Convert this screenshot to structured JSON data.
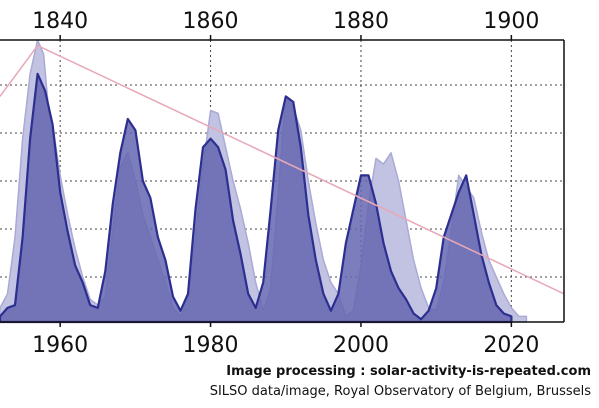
{
  "chart_data": {
    "type": "area",
    "title": "",
    "top_axis": {
      "ticks": [
        1840,
        1860,
        1880,
        1900
      ],
      "range": [
        1832,
        1907
      ]
    },
    "bottom_axis": {
      "ticks": [
        1960,
        1980,
        2000,
        2020
      ],
      "range": [
        1952,
        2027
      ]
    },
    "ylim": [
      0,
      1
    ],
    "grid": true,
    "series": [
      {
        "axis": "top",
        "color": "#c2c2e2",
        "points": [
          [
            1832,
            0.05
          ],
          [
            1833,
            0.1
          ],
          [
            1834,
            0.3
          ],
          [
            1835,
            0.65
          ],
          [
            1836,
            0.88
          ],
          [
            1837,
            1.0
          ],
          [
            1837.8,
            0.95
          ],
          [
            1838.5,
            0.74
          ],
          [
            1839,
            0.7
          ],
          [
            1840,
            0.52
          ],
          [
            1841,
            0.38
          ],
          [
            1842,
            0.26
          ],
          [
            1843,
            0.16
          ],
          [
            1844,
            0.08
          ],
          [
            1845,
            0.06
          ],
          [
            1846,
            0.09
          ],
          [
            1847,
            0.32
          ],
          [
            1848,
            0.55
          ],
          [
            1849,
            0.6
          ],
          [
            1850,
            0.5
          ],
          [
            1851,
            0.38
          ],
          [
            1852,
            0.3
          ],
          [
            1853,
            0.22
          ],
          [
            1854,
            0.14
          ],
          [
            1855,
            0.05
          ],
          [
            1856,
            0.02
          ],
          [
            1857,
            0.08
          ],
          [
            1858,
            0.3
          ],
          [
            1859,
            0.55
          ],
          [
            1860,
            0.75
          ],
          [
            1861,
            0.74
          ],
          [
            1862,
            0.62
          ],
          [
            1863,
            0.5
          ],
          [
            1864,
            0.4
          ],
          [
            1865,
            0.28
          ],
          [
            1866,
            0.14
          ],
          [
            1867,
            0.04
          ],
          [
            1868,
            0.12
          ],
          [
            1869,
            0.45
          ],
          [
            1870,
            0.8
          ],
          [
            1871,
            0.76
          ],
          [
            1872,
            0.68
          ],
          [
            1873,
            0.5
          ],
          [
            1874,
            0.35
          ],
          [
            1875,
            0.22
          ],
          [
            1876,
            0.14
          ],
          [
            1877,
            0.1
          ],
          [
            1878,
            0.02
          ],
          [
            1879,
            0.04
          ],
          [
            1880,
            0.2
          ],
          [
            1881,
            0.42
          ],
          [
            1882,
            0.58
          ],
          [
            1883,
            0.56
          ],
          [
            1884,
            0.6
          ],
          [
            1885,
            0.5
          ],
          [
            1886,
            0.36
          ],
          [
            1887,
            0.22
          ],
          [
            1888,
            0.12
          ],
          [
            1889,
            0.05
          ],
          [
            1890,
            0.04
          ],
          [
            1891,
            0.14
          ],
          [
            1892,
            0.32
          ],
          [
            1893,
            0.52
          ],
          [
            1894,
            0.48
          ],
          [
            1895,
            0.44
          ],
          [
            1896,
            0.32
          ],
          [
            1897,
            0.22
          ],
          [
            1898,
            0.16
          ],
          [
            1899,
            0.1
          ],
          [
            1900,
            0.05
          ],
          [
            1901,
            0.02
          ],
          [
            1902,
            0.02
          ]
        ]
      },
      {
        "axis": "bottom",
        "color": "#6566b0",
        "points": [
          [
            1952,
            0.02
          ],
          [
            1953,
            0.05
          ],
          [
            1954,
            0.06
          ],
          [
            1955,
            0.3
          ],
          [
            1956,
            0.65
          ],
          [
            1957,
            0.88
          ],
          [
            1958,
            0.82
          ],
          [
            1959,
            0.7
          ],
          [
            1960,
            0.46
          ],
          [
            1961,
            0.32
          ],
          [
            1962,
            0.2
          ],
          [
            1963,
            0.14
          ],
          [
            1964,
            0.06
          ],
          [
            1965,
            0.05
          ],
          [
            1966,
            0.18
          ],
          [
            1967,
            0.42
          ],
          [
            1968,
            0.6
          ],
          [
            1969,
            0.72
          ],
          [
            1970,
            0.68
          ],
          [
            1971,
            0.5
          ],
          [
            1972,
            0.44
          ],
          [
            1973,
            0.3
          ],
          [
            1974,
            0.22
          ],
          [
            1975,
            0.09
          ],
          [
            1976,
            0.04
          ],
          [
            1977,
            0.1
          ],
          [
            1978,
            0.4
          ],
          [
            1979,
            0.62
          ],
          [
            1980,
            0.65
          ],
          [
            1981,
            0.62
          ],
          [
            1982,
            0.54
          ],
          [
            1983,
            0.36
          ],
          [
            1984,
            0.24
          ],
          [
            1985,
            0.1
          ],
          [
            1986,
            0.05
          ],
          [
            1987,
            0.14
          ],
          [
            1988,
            0.4
          ],
          [
            1989,
            0.68
          ],
          [
            1990,
            0.8
          ],
          [
            1991,
            0.78
          ],
          [
            1992,
            0.62
          ],
          [
            1993,
            0.38
          ],
          [
            1994,
            0.22
          ],
          [
            1995,
            0.1
          ],
          [
            1996,
            0.04
          ],
          [
            1997,
            0.1
          ],
          [
            1998,
            0.28
          ],
          [
            1999,
            0.4
          ],
          [
            2000,
            0.52
          ],
          [
            2001,
            0.52
          ],
          [
            2002,
            0.42
          ],
          [
            2003,
            0.28
          ],
          [
            2004,
            0.18
          ],
          [
            2005,
            0.12
          ],
          [
            2006,
            0.08
          ],
          [
            2007,
            0.03
          ],
          [
            2008,
            0.01
          ],
          [
            2009,
            0.04
          ],
          [
            2010,
            0.12
          ],
          [
            2011,
            0.3
          ],
          [
            2012,
            0.38
          ],
          [
            2013,
            0.46
          ],
          [
            2014,
            0.52
          ],
          [
            2015,
            0.38
          ],
          [
            2016,
            0.24
          ],
          [
            2017,
            0.14
          ],
          [
            2018,
            0.06
          ],
          [
            2019,
            0.03
          ],
          [
            2020,
            0.02
          ]
        ]
      }
    ],
    "trend_line": {
      "axis": "top",
      "color": "#e8a8b8",
      "points": [
        [
          1832,
          0.8
        ],
        [
          1837,
          0.98
        ],
        [
          1907,
          0.1
        ]
      ]
    }
  },
  "credits": {
    "line1": "Image processing : solar-activity-is-repeated.com",
    "line2": "SILSO data/image, Royal Observatory of Belgium, Brussels"
  }
}
